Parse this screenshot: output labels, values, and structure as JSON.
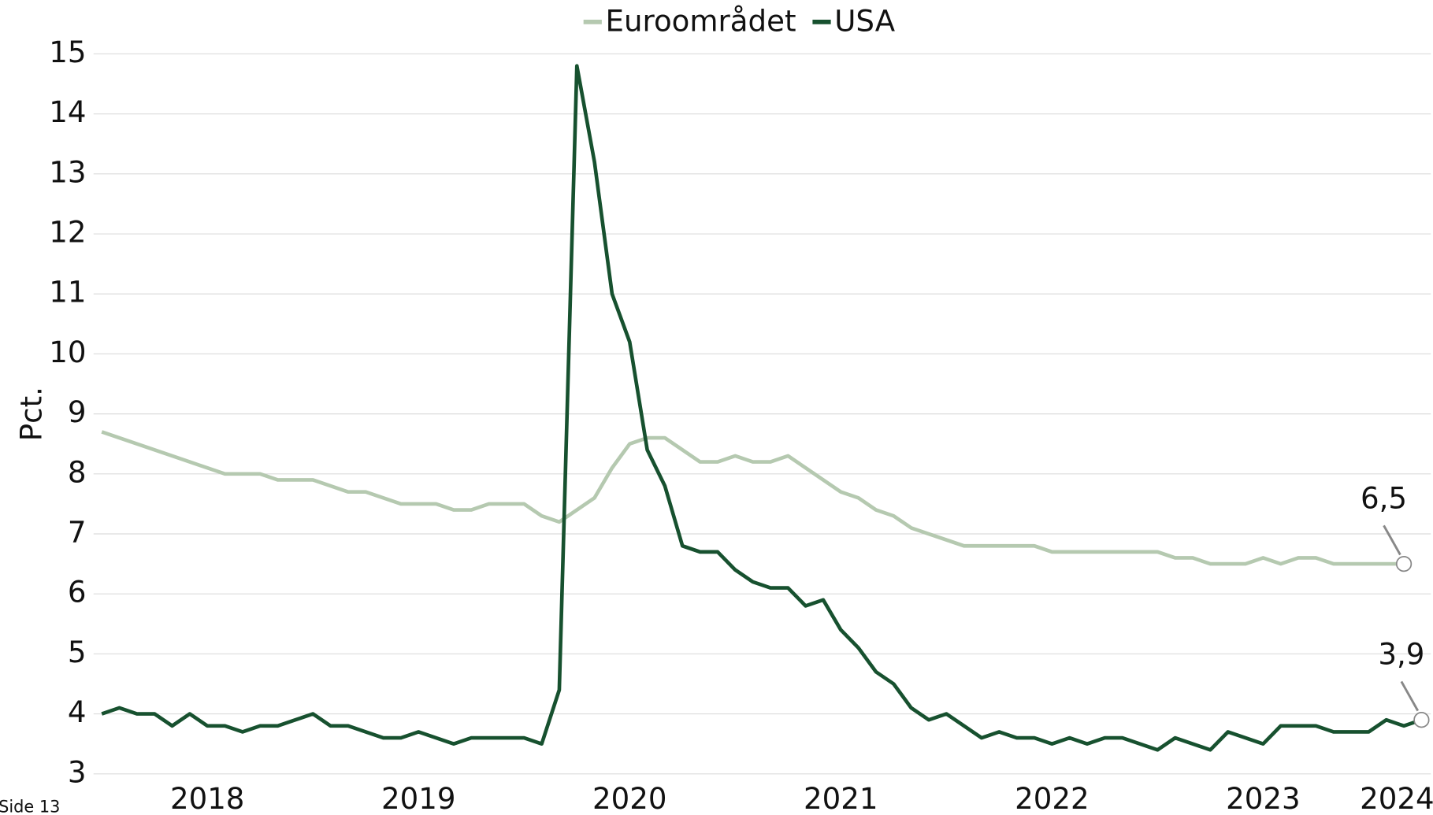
{
  "chart_data": {
    "type": "line",
    "ylabel": "Pct.",
    "footer": "Side 13",
    "categories": [
      null,
      null,
      null,
      null,
      null,
      null,
      "2018",
      null,
      null,
      null,
      null,
      null,
      null,
      null,
      null,
      null,
      null,
      null,
      "2019",
      null,
      null,
      null,
      null,
      null,
      null,
      null,
      null,
      null,
      null,
      null,
      "2020",
      null,
      null,
      null,
      null,
      null,
      null,
      null,
      null,
      null,
      null,
      null,
      "2021",
      null,
      null,
      null,
      null,
      null,
      null,
      null,
      null,
      null,
      null,
      null,
      "2022",
      null,
      null,
      null,
      null,
      null,
      null,
      null,
      null,
      null,
      null,
      null,
      "2023",
      null,
      null,
      null,
      null,
      null,
      null,
      null,
      "2024",
      null
    ],
    "series": [
      {
        "name": "Euroområdet",
        "color": "#b5c9b0",
        "values": [
          8.7,
          8.6,
          8.5,
          8.4,
          8.3,
          8.2,
          8.1,
          8.0,
          8.0,
          8.0,
          7.9,
          7.9,
          7.9,
          7.8,
          7.7,
          7.7,
          7.6,
          7.5,
          7.5,
          7.5,
          7.4,
          7.4,
          7.5,
          7.5,
          7.5,
          7.3,
          7.2,
          7.4,
          7.6,
          8.1,
          8.5,
          8.6,
          8.6,
          8.4,
          8.2,
          8.2,
          8.3,
          8.2,
          8.2,
          8.3,
          8.1,
          7.9,
          7.7,
          7.6,
          7.4,
          7.3,
          7.1,
          7.0,
          6.9,
          6.8,
          6.8,
          6.8,
          6.8,
          6.8,
          6.7,
          6.7,
          6.7,
          6.7,
          6.7,
          6.7,
          6.7,
          6.6,
          6.6,
          6.5,
          6.5,
          6.5,
          6.6,
          6.5,
          6.6,
          6.6,
          6.5,
          6.5,
          6.5,
          6.5,
          6.5,
          null
        ],
        "value_labels": [
          null,
          null,
          null,
          null,
          null,
          null,
          null,
          null,
          null,
          null,
          null,
          null,
          null,
          null,
          null,
          null,
          null,
          null,
          null,
          null,
          null,
          null,
          null,
          null,
          null,
          null,
          null,
          null,
          null,
          null,
          null,
          null,
          null,
          null,
          null,
          null,
          null,
          null,
          null,
          null,
          null,
          null,
          null,
          null,
          null,
          null,
          null,
          null,
          null,
          null,
          null,
          null,
          null,
          null,
          null,
          null,
          null,
          null,
          null,
          null,
          null,
          null,
          null,
          null,
          null,
          null,
          null,
          null,
          null,
          null,
          null,
          null,
          null,
          null,
          "6,5",
          null
        ]
      },
      {
        "name": "USA",
        "color": "#17512f",
        "values": [
          4.0,
          4.1,
          4.0,
          4.0,
          3.8,
          4.0,
          3.8,
          3.8,
          3.7,
          3.8,
          3.8,
          3.9,
          4.0,
          3.8,
          3.8,
          3.7,
          3.6,
          3.6,
          3.7,
          3.6,
          3.5,
          3.6,
          3.6,
          3.6,
          3.6,
          3.5,
          4.4,
          14.8,
          13.2,
          11.0,
          10.2,
          8.4,
          7.8,
          6.8,
          6.7,
          6.7,
          6.4,
          6.2,
          6.1,
          6.1,
          5.8,
          5.9,
          5.4,
          5.1,
          4.7,
          4.5,
          4.1,
          3.9,
          4.0,
          3.8,
          3.6,
          3.7,
          3.6,
          3.6,
          3.5,
          3.6,
          3.5,
          3.6,
          3.6,
          3.5,
          3.4,
          3.6,
          3.5,
          3.4,
          3.7,
          3.6,
          3.5,
          3.8,
          3.8,
          3.8,
          3.7,
          3.7,
          3.7,
          3.9,
          3.8,
          3.9
        ],
        "value_labels": [
          null,
          null,
          null,
          null,
          null,
          null,
          null,
          null,
          null,
          null,
          null,
          null,
          null,
          null,
          null,
          null,
          null,
          null,
          null,
          null,
          null,
          null,
          null,
          null,
          null,
          null,
          null,
          null,
          null,
          null,
          null,
          null,
          null,
          null,
          null,
          null,
          null,
          null,
          null,
          null,
          null,
          null,
          null,
          null,
          null,
          null,
          null,
          null,
          null,
          null,
          null,
          null,
          null,
          null,
          null,
          null,
          null,
          null,
          null,
          null,
          null,
          null,
          null,
          null,
          null,
          null,
          null,
          null,
          null,
          null,
          null,
          null,
          null,
          null,
          null,
          "3,9"
        ]
      }
    ],
    "ylim": [
      3,
      15
    ],
    "yticks": [
      3,
      4,
      5,
      6,
      7,
      8,
      9,
      10,
      11,
      12,
      13,
      14,
      15
    ],
    "grid": true,
    "legend": "top"
  }
}
